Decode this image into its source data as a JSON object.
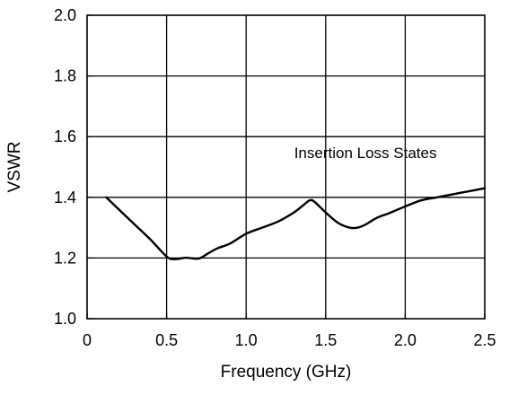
{
  "chart_data": {
    "type": "line",
    "title": "",
    "xlabel": "Frequency (GHz)",
    "ylabel": "VSWR",
    "xlim": [
      0,
      2.5
    ],
    "ylim": [
      1.0,
      2.0
    ],
    "x_ticks": [
      0,
      0.5,
      1.0,
      1.5,
      2.0,
      2.5
    ],
    "x_tick_labels": [
      "0",
      "0.5",
      "1.0",
      "1.5",
      "2.0",
      "2.5"
    ],
    "y_ticks": [
      1.0,
      1.2,
      1.4,
      1.6,
      1.8,
      2.0
    ],
    "y_tick_labels": [
      "1.0",
      "1.2",
      "1.4",
      "1.6",
      "1.8",
      "2.0"
    ],
    "grid": true,
    "annotations": [
      {
        "text": "Insertion Loss States",
        "x": 1.75,
        "y": 1.53
      }
    ],
    "series": [
      {
        "color": "#000000",
        "points": [
          [
            0.12,
            1.4
          ],
          [
            0.2,
            1.36
          ],
          [
            0.3,
            1.31
          ],
          [
            0.4,
            1.26
          ],
          [
            0.48,
            1.215
          ],
          [
            0.52,
            1.198
          ],
          [
            0.57,
            1.197
          ],
          [
            0.62,
            1.201
          ],
          [
            0.7,
            1.198
          ],
          [
            0.76,
            1.215
          ],
          [
            0.82,
            1.232
          ],
          [
            0.9,
            1.248
          ],
          [
            1.0,
            1.28
          ],
          [
            1.1,
            1.3
          ],
          [
            1.2,
            1.32
          ],
          [
            1.3,
            1.35
          ],
          [
            1.35,
            1.37
          ],
          [
            1.4,
            1.39
          ],
          [
            1.43,
            1.385
          ],
          [
            1.5,
            1.35
          ],
          [
            1.58,
            1.315
          ],
          [
            1.65,
            1.3
          ],
          [
            1.7,
            1.3
          ],
          [
            1.75,
            1.31
          ],
          [
            1.82,
            1.332
          ],
          [
            1.9,
            1.348
          ],
          [
            2.0,
            1.37
          ],
          [
            2.1,
            1.39
          ],
          [
            2.2,
            1.4
          ],
          [
            2.3,
            1.41
          ],
          [
            2.4,
            1.42
          ],
          [
            2.5,
            1.43
          ]
        ]
      }
    ]
  }
}
